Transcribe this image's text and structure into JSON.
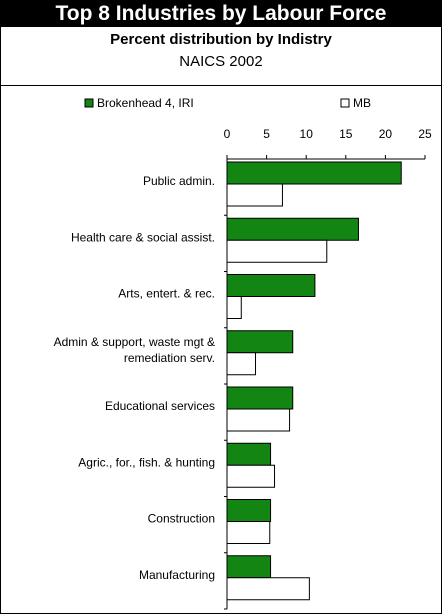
{
  "header": {
    "title": "Top 8 Industries by Labour Force",
    "subtitle": "Percent distribution by Indistry",
    "subtitle2": "NAICS 2002"
  },
  "colors": {
    "series1": "#138513",
    "series2": "#ffffff",
    "outline": "#000000"
  },
  "chart_data": {
    "type": "bar",
    "orientation": "horizontal",
    "categories": [
      [
        "Public admin."
      ],
      [
        "Health care & social assist."
      ],
      [
        "Arts, entert. & rec."
      ],
      [
        "Admin & support, waste mgt &",
        "remediation serv."
      ],
      [
        "Educational services"
      ],
      [
        "Agric., for., fish. & hunting"
      ],
      [
        "Construction"
      ],
      [
        "Manufacturing"
      ]
    ],
    "series": [
      {
        "name": "Brokenhead 4, IRI",
        "values": [
          22.0,
          16.6,
          11.1,
          8.3,
          8.3,
          5.5,
          5.5,
          5.5
        ]
      },
      {
        "name": "MB",
        "values": [
          7.0,
          12.6,
          1.8,
          3.6,
          7.9,
          6.0,
          5.4,
          10.4
        ]
      }
    ],
    "xlim": [
      0,
      25
    ],
    "xticks": [
      0,
      5,
      10,
      15,
      20,
      25
    ],
    "legend_position": "top",
    "grid": false
  }
}
